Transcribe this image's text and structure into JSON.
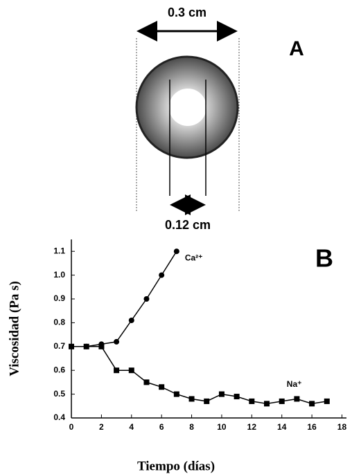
{
  "diagram": {
    "panel_label": "A",
    "outer_label": "0.3 cm",
    "inner_label": "0.12 cm"
  },
  "chart_data": {
    "type": "line",
    "panel_label": "B",
    "x_label": "Tiempo (días)",
    "y_label": "Viscosidad (Pa s)",
    "x": [
      0,
      1,
      2,
      3,
      4,
      5,
      6,
      7,
      8,
      9,
      10,
      11,
      12,
      13,
      14,
      15,
      16,
      17
    ],
    "series": [
      {
        "name": "Ca²⁺",
        "color": "#000000",
        "marker": "circle",
        "values": [
          0.7,
          0.7,
          0.71,
          0.72,
          0.81,
          0.9,
          1.0,
          1.1,
          null,
          null,
          null,
          null,
          null,
          null,
          null,
          null,
          null,
          null
        ]
      },
      {
        "name": "Na⁺",
        "color": "#000000",
        "marker": "square",
        "values": [
          0.7,
          0.7,
          0.7,
          0.6,
          0.6,
          0.55,
          0.53,
          0.5,
          0.48,
          0.47,
          0.5,
          0.49,
          0.47,
          0.46,
          0.47,
          0.48,
          0.46,
          0.47
        ]
      }
    ],
    "xlim": [
      0,
      18.3
    ],
    "ylim": [
      0.4,
      1.15
    ],
    "xticks": [
      0,
      2,
      4,
      6,
      8,
      10,
      12,
      14,
      16,
      18
    ],
    "yticks": [
      0.4,
      0.5,
      0.6,
      0.7,
      0.8,
      0.9,
      {
        "value": 1,
        "label": "1.0"
      },
      1.1
    ],
    "grid": false
  }
}
